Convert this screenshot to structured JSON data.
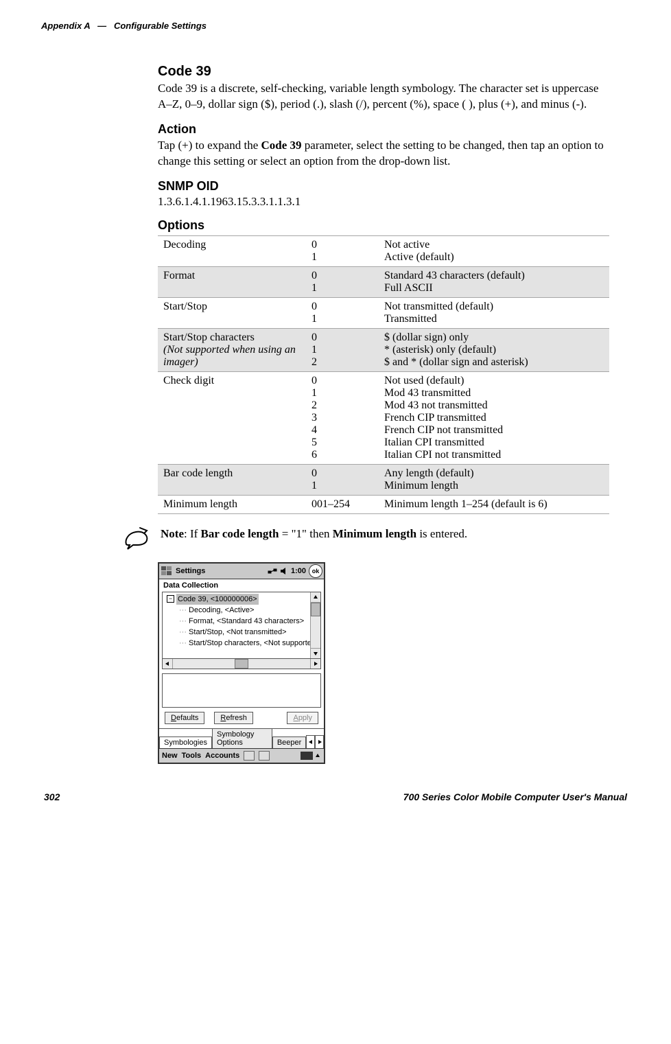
{
  "running_head": {
    "appendix": "Appendix A",
    "sep": "—",
    "title": "Configurable Settings"
  },
  "code39": {
    "heading": "Code 39",
    "desc": "Code 39 is a discrete, self-checking, variable length symbology. The character set is uppercase A–Z, 0–9, dollar sign ($), period (.), slash (/), percent (%), space ( ), plus (+), and minus (-)."
  },
  "action": {
    "heading": "Action",
    "pre": "Tap (+) to expand the ",
    "bold": "Code 39",
    "post": " parameter, select the setting to be changed, then tap an option to change this setting or select an option from the drop-down list."
  },
  "snmp": {
    "heading": "SNMP OID",
    "value": "1.3.6.1.4.1.1963.15.3.3.1.1.3.1"
  },
  "options": {
    "heading": "Options",
    "rows": [
      {
        "name": "Decoding",
        "codes": "0\n1",
        "vals": "Not active\nActive (default)",
        "shade": false
      },
      {
        "name": "Format",
        "codes": "0\n1",
        "vals": "Standard 43 characters (default)\nFull ASCII",
        "shade": true
      },
      {
        "name": "Start/Stop",
        "codes": "0\n1",
        "vals": "Not transmitted (default)\nTransmitted",
        "shade": false
      },
      {
        "name_html": "Start/Stop characters\n(Not supported when using an imager)",
        "codes": "0\n1\n2",
        "vals": "$ (dollar sign) only\n* (asterisk) only (default)\n$ and * (dollar sign and asterisk)",
        "shade": true,
        "italic_from": 1
      },
      {
        "name": "Check digit",
        "codes": "0\n1\n2\n3\n4\n5\n6",
        "vals": "Not used (default)\nMod 43 transmitted\nMod 43 not transmitted\nFrench CIP transmitted\nFrench CIP not transmitted\nItalian CPI transmitted\nItalian CPI not transmitted",
        "shade": false
      },
      {
        "name": "Bar code length",
        "codes": "0\n1",
        "vals": "Any length (default)\nMinimum length",
        "shade": true
      },
      {
        "name": "Minimum length",
        "codes": "001–254",
        "vals": "Minimum length 1–254 (default is 6)",
        "shade": false
      }
    ]
  },
  "note": {
    "pre": "Note",
    "mid1": ": If ",
    "b1": "Bar code length",
    "mid2": " = \"1\" then ",
    "b2": "Minimum length",
    "post": " is entered."
  },
  "device": {
    "title": "Settings",
    "time": "1:00",
    "ok": "ok",
    "subtitle": "Data Collection",
    "root": "Code 39, <100000006>",
    "children": [
      "Decoding, <Active>",
      "Format, <Standard 43 characters>",
      "Start/Stop, <Not transmitted>",
      "Start/Stop characters, <Not supported"
    ],
    "btn_defaults": "Defaults",
    "btn_refresh": "Refresh",
    "btn_apply": "Apply",
    "tab1": "Symbologies",
    "tab2": "Symbology Options",
    "tab3": "Beeper",
    "bb_new": "New",
    "bb_tools": "Tools",
    "bb_accounts": "Accounts"
  },
  "footer": {
    "page": "302",
    "title": "700 Series Color Mobile Computer User's Manual"
  }
}
